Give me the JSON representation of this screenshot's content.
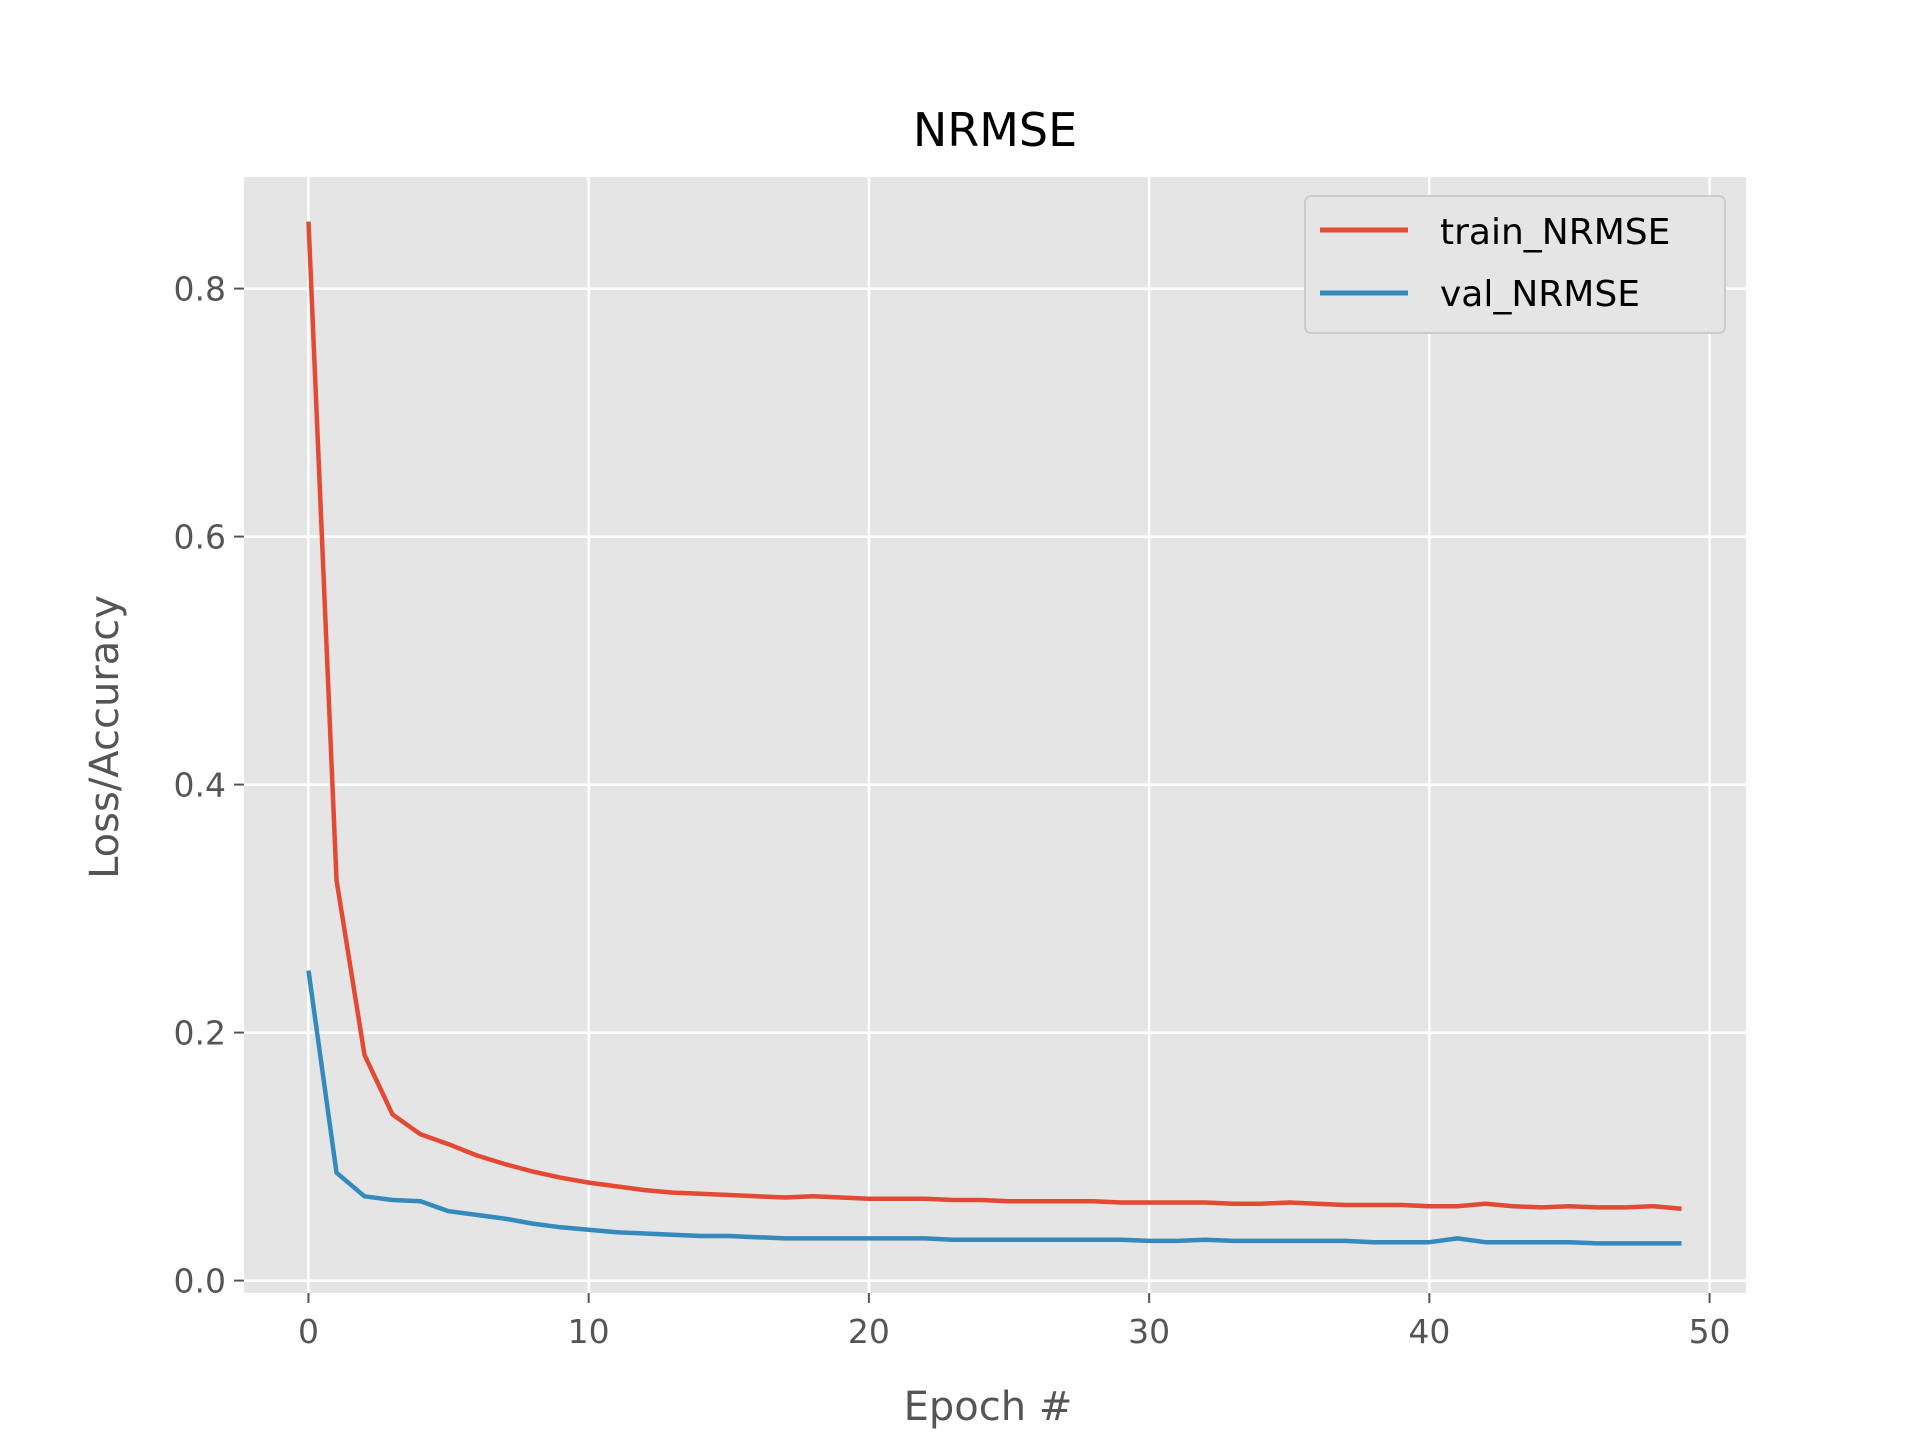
{
  "chart_data": {
    "type": "line",
    "title": "NRMSE",
    "xlabel": "Epoch #",
    "ylabel": "Loss/Accuracy",
    "xlim": [
      -2.3,
      51.3
    ],
    "ylim": [
      -0.01,
      0.89
    ],
    "xticks": [
      0,
      10,
      20,
      30,
      40,
      50
    ],
    "xtick_labels": [
      "0",
      "10",
      "20",
      "30",
      "40",
      "50"
    ],
    "yticks": [
      0.0,
      0.2,
      0.4,
      0.6,
      0.8
    ],
    "ytick_labels": [
      "0.0",
      "0.2",
      "0.4",
      "0.6",
      "0.8"
    ],
    "grid": true,
    "legend_position": "top-right",
    "x": [
      0,
      1,
      2,
      3,
      4,
      5,
      6,
      7,
      8,
      9,
      10,
      11,
      12,
      13,
      14,
      15,
      16,
      17,
      18,
      19,
      20,
      21,
      22,
      23,
      24,
      25,
      26,
      27,
      28,
      29,
      30,
      31,
      32,
      33,
      34,
      35,
      36,
      37,
      38,
      39,
      40,
      41,
      42,
      43,
      44,
      45,
      46,
      47,
      48,
      49
    ],
    "series": [
      {
        "name": "train_NRMSE",
        "color": "#E24A33",
        "values": [
          0.854,
          0.323,
          0.182,
          0.134,
          0.118,
          0.11,
          0.101,
          0.094,
          0.088,
          0.083,
          0.079,
          0.076,
          0.073,
          0.071,
          0.07,
          0.069,
          0.068,
          0.067,
          0.068,
          0.067,
          0.066,
          0.066,
          0.066,
          0.065,
          0.065,
          0.064,
          0.064,
          0.064,
          0.064,
          0.063,
          0.063,
          0.063,
          0.063,
          0.062,
          0.062,
          0.063,
          0.062,
          0.061,
          0.061,
          0.061,
          0.06,
          0.06,
          0.062,
          0.06,
          0.059,
          0.06,
          0.059,
          0.059,
          0.06,
          0.058
        ]
      },
      {
        "name": "val_NRMSE",
        "color": "#348ABD",
        "values": [
          0.25,
          0.087,
          0.068,
          0.065,
          0.064,
          0.056,
          0.053,
          0.05,
          0.046,
          0.043,
          0.041,
          0.039,
          0.038,
          0.037,
          0.036,
          0.036,
          0.035,
          0.034,
          0.034,
          0.034,
          0.034,
          0.034,
          0.034,
          0.033,
          0.033,
          0.033,
          0.033,
          0.033,
          0.033,
          0.033,
          0.032,
          0.032,
          0.033,
          0.032,
          0.032,
          0.032,
          0.032,
          0.032,
          0.031,
          0.031,
          0.031,
          0.034,
          0.031,
          0.031,
          0.031,
          0.031,
          0.03,
          0.03,
          0.03,
          0.03
        ]
      }
    ]
  }
}
